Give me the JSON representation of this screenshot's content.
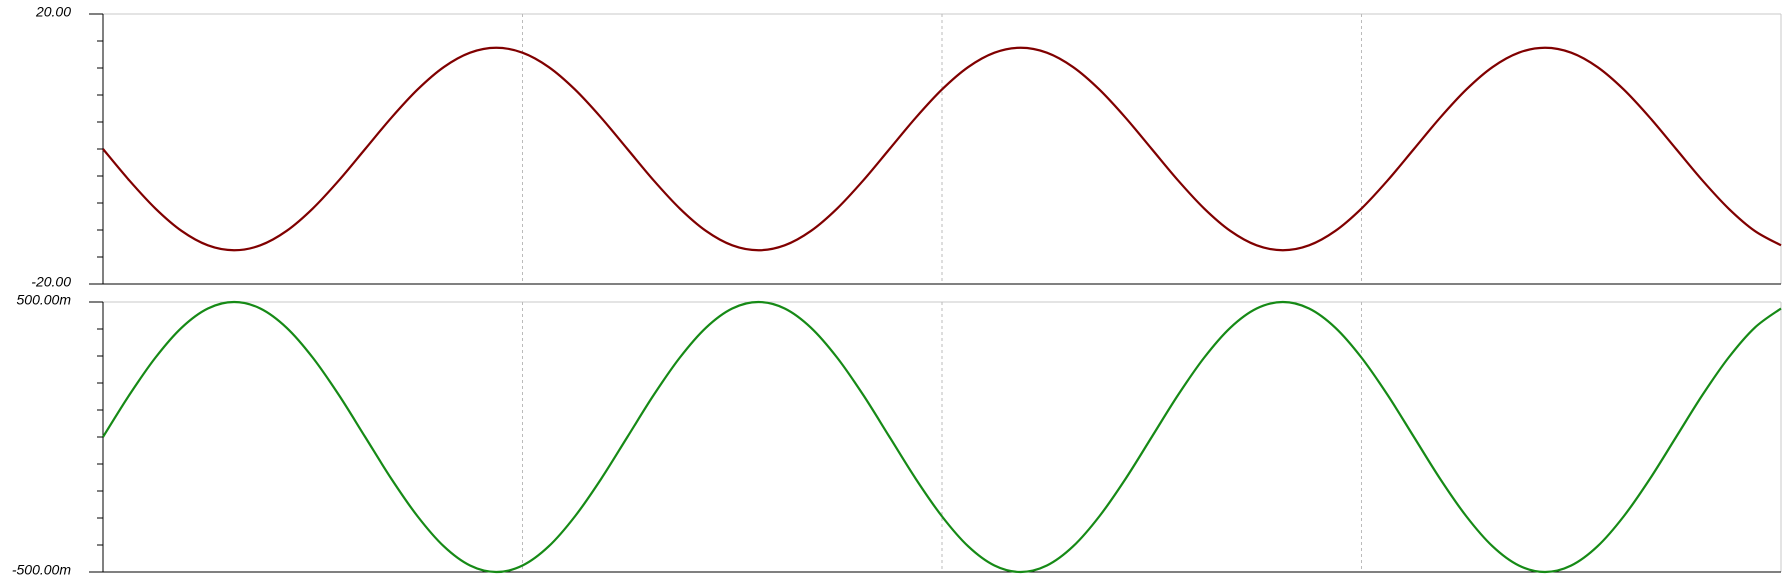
{
  "chart_data": [
    {
      "type": "line",
      "color": "#800000",
      "xlim": [
        0,
        3.2
      ],
      "xticks": [
        0.8,
        1.6,
        2.4
      ],
      "ylim": [
        -20,
        20
      ],
      "yticks": [
        {
          "value": 20,
          "label": "20.00"
        },
        {
          "value": -20,
          "label": "-20.00"
        }
      ],
      "x": [
        0,
        0.05,
        0.1,
        0.15,
        0.2,
        0.25,
        0.3,
        0.35,
        0.4,
        0.45,
        0.5,
        0.55,
        0.6,
        0.65,
        0.7,
        0.75,
        0.8,
        0.85,
        0.9,
        0.95,
        1,
        1.05,
        1.1,
        1.15,
        1.2,
        1.25,
        1.3,
        1.35,
        1.4,
        1.45,
        1.5,
        1.55,
        1.6,
        1.65,
        1.7,
        1.75,
        1.8,
        1.85,
        1.9,
        1.95,
        2,
        2.05,
        2.1,
        2.15,
        2.2,
        2.25,
        2.3,
        2.35,
        2.4,
        2.45,
        2.5,
        2.55,
        2.6,
        2.65,
        2.7,
        2.75,
        2.8,
        2.85,
        2.9,
        2.95,
        3,
        3.05,
        3.1,
        3.15,
        3.2
      ],
      "values": [
        0,
        -4.64,
        -8.82,
        -12.14,
        -14.27,
        -15,
        -14.27,
        -12.14,
        -8.82,
        -4.64,
        0,
        4.64,
        8.82,
        12.14,
        14.27,
        15,
        14.27,
        12.14,
        8.82,
        4.64,
        0,
        -4.64,
        -8.82,
        -12.14,
        -14.27,
        -15,
        -14.27,
        -12.14,
        -8.82,
        -4.64,
        0,
        4.64,
        8.82,
        12.14,
        14.27,
        15,
        14.27,
        12.14,
        8.82,
        4.64,
        0,
        -4.64,
        -8.82,
        -12.14,
        -14.27,
        -15,
        -14.27,
        -12.14,
        -8.82,
        -4.64,
        0,
        4.64,
        8.82,
        12.14,
        14.27,
        15,
        14.27,
        12.14,
        8.82,
        4.64,
        0,
        -4.64,
        -8.82,
        -12.14,
        -14.27
      ]
    },
    {
      "type": "line",
      "color": "#168a16",
      "xlim": [
        0,
        3.2
      ],
      "xticks": [
        0.8,
        1.6,
        2.4
      ],
      "ylim": [
        -0.5,
        0.5
      ],
      "yticks": [
        {
          "value": 0.5,
          "label": "500.00m"
        },
        {
          "value": -0.5,
          "label": "-500.00m"
        }
      ],
      "x": [
        0,
        0.05,
        0.1,
        0.15,
        0.2,
        0.25,
        0.3,
        0.35,
        0.4,
        0.45,
        0.5,
        0.55,
        0.6,
        0.65,
        0.7,
        0.75,
        0.8,
        0.85,
        0.9,
        0.95,
        1,
        1.05,
        1.1,
        1.15,
        1.2,
        1.25,
        1.3,
        1.35,
        1.4,
        1.45,
        1.5,
        1.55,
        1.6,
        1.65,
        1.7,
        1.75,
        1.8,
        1.85,
        1.9,
        1.95,
        2,
        2.05,
        2.1,
        2.15,
        2.2,
        2.25,
        2.3,
        2.35,
        2.4,
        2.45,
        2.5,
        2.55,
        2.6,
        2.65,
        2.7,
        2.75,
        2.8,
        2.85,
        2.9,
        2.95,
        3,
        3.05,
        3.1,
        3.15,
        3.2
      ],
      "values": [
        0,
        0.155,
        0.294,
        0.405,
        0.476,
        0.5,
        0.476,
        0.405,
        0.294,
        0.155,
        0,
        -0.155,
        -0.294,
        -0.405,
        -0.476,
        -0.5,
        -0.476,
        -0.405,
        -0.294,
        -0.155,
        0,
        0.155,
        0.294,
        0.405,
        0.476,
        0.5,
        0.476,
        0.405,
        0.294,
        0.155,
        0,
        -0.155,
        -0.294,
        -0.405,
        -0.476,
        -0.5,
        -0.476,
        -0.405,
        -0.294,
        -0.155,
        0,
        0.155,
        0.294,
        0.405,
        0.476,
        0.5,
        0.476,
        0.405,
        0.294,
        0.155,
        0,
        -0.155,
        -0.294,
        -0.405,
        -0.476,
        -0.5,
        -0.476,
        -0.405,
        -0.294,
        -0.155,
        0,
        0.155,
        0.294,
        0.405,
        0.476
      ]
    }
  ]
}
